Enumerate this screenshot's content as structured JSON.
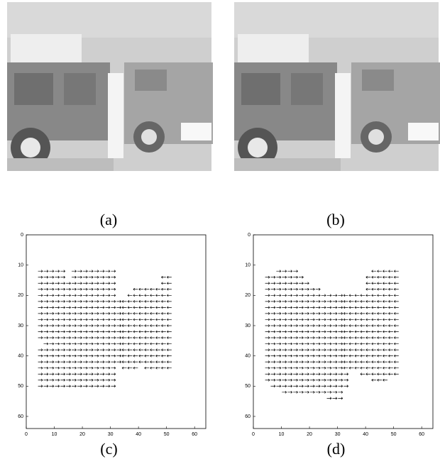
{
  "figure": {
    "captions": [
      "(a)",
      "(b)"
    ]
  },
  "chart_data": [
    {
      "type": "quiver",
      "caption": "(c)",
      "xlim": [
        0,
        64
      ],
      "ylim": [
        0,
        64
      ],
      "xticks": [
        0,
        10,
        20,
        30,
        40,
        50,
        60
      ],
      "yticks": [
        0,
        10,
        20,
        30,
        40,
        50,
        60
      ],
      "spans": [
        [
          12,
          5,
          13,
          1
        ],
        [
          12,
          17,
          31,
          1
        ],
        [
          14,
          5,
          13,
          1
        ],
        [
          14,
          17,
          31,
          1
        ],
        [
          14,
          49,
          51,
          -1
        ],
        [
          16,
          5,
          31,
          1
        ],
        [
          16,
          49,
          51,
          -1
        ],
        [
          18,
          5,
          31,
          1
        ],
        [
          18,
          39,
          51,
          -1
        ],
        [
          20,
          5,
          31,
          1
        ],
        [
          20,
          37,
          51,
          -1
        ],
        [
          22,
          5,
          33,
          1
        ],
        [
          22,
          35,
          51,
          -1
        ],
        [
          24,
          5,
          33,
          1
        ],
        [
          24,
          35,
          51,
          -1
        ],
        [
          26,
          5,
          33,
          1
        ],
        [
          26,
          35,
          51,
          -1
        ],
        [
          28,
          5,
          33,
          1
        ],
        [
          28,
          35,
          51,
          -1
        ],
        [
          30,
          5,
          33,
          1
        ],
        [
          30,
          35,
          51,
          -1
        ],
        [
          32,
          5,
          33,
          1
        ],
        [
          32,
          35,
          51,
          -1
        ],
        [
          34,
          5,
          33,
          1
        ],
        [
          34,
          35,
          51,
          -1
        ],
        [
          36,
          7,
          33,
          1
        ],
        [
          36,
          35,
          51,
          -1
        ],
        [
          38,
          5,
          33,
          1
        ],
        [
          38,
          35,
          51,
          -1
        ],
        [
          40,
          5,
          33,
          1
        ],
        [
          40,
          35,
          51,
          -1
        ],
        [
          42,
          5,
          33,
          1
        ],
        [
          42,
          35,
          51,
          -1
        ],
        [
          44,
          5,
          31,
          1
        ],
        [
          44,
          35,
          39,
          -1
        ],
        [
          44,
          43,
          51,
          -1
        ],
        [
          46,
          5,
          31,
          1
        ],
        [
          48,
          5,
          31,
          1
        ],
        [
          50,
          5,
          31,
          1
        ]
      ]
    },
    {
      "type": "quiver",
      "caption": "(d)",
      "xlim": [
        0,
        64
      ],
      "ylim": [
        0,
        64
      ],
      "xticks": [
        0,
        10,
        20,
        30,
        40,
        50,
        60
      ],
      "yticks": [
        0,
        10,
        20,
        30,
        40,
        50,
        60
      ],
      "spans": [
        [
          12,
          9,
          15,
          1
        ],
        [
          12,
          43,
          51,
          -1
        ],
        [
          14,
          5,
          17,
          1
        ],
        [
          14,
          41,
          51,
          -1
        ],
        [
          16,
          5,
          19,
          1
        ],
        [
          16,
          41,
          51,
          -1
        ],
        [
          18,
          5,
          23,
          1
        ],
        [
          18,
          41,
          51,
          -1
        ],
        [
          20,
          5,
          31,
          1
        ],
        [
          20,
          33,
          51,
          -1
        ],
        [
          22,
          5,
          31,
          1
        ],
        [
          22,
          33,
          51,
          -1
        ],
        [
          24,
          5,
          31,
          1
        ],
        [
          24,
          33,
          51,
          -1
        ],
        [
          26,
          5,
          31,
          1
        ],
        [
          26,
          33,
          51,
          -1
        ],
        [
          28,
          5,
          31,
          1
        ],
        [
          28,
          33,
          51,
          -1
        ],
        [
          30,
          5,
          31,
          1
        ],
        [
          30,
          33,
          51,
          -1
        ],
        [
          32,
          5,
          31,
          1
        ],
        [
          32,
          33,
          51,
          -1
        ],
        [
          34,
          5,
          31,
          1
        ],
        [
          34,
          33,
          51,
          -1
        ],
        [
          36,
          5,
          31,
          1
        ],
        [
          36,
          33,
          51,
          -1
        ],
        [
          38,
          5,
          31,
          1
        ],
        [
          38,
          33,
          51,
          -1
        ],
        [
          40,
          5,
          31,
          1
        ],
        [
          40,
          33,
          51,
          -1
        ],
        [
          42,
          5,
          31,
          1
        ],
        [
          42,
          33,
          51,
          -1
        ],
        [
          44,
          5,
          31,
          1
        ],
        [
          44,
          33,
          51,
          -1
        ],
        [
          46,
          5,
          33,
          1
        ],
        [
          46,
          39,
          51,
          -1
        ],
        [
          48,
          5,
          33,
          1
        ],
        [
          48,
          43,
          47,
          -1
        ],
        [
          50,
          7,
          33,
          1
        ],
        [
          52,
          11,
          31,
          1
        ],
        [
          54,
          27,
          31,
          1
        ]
      ]
    }
  ]
}
